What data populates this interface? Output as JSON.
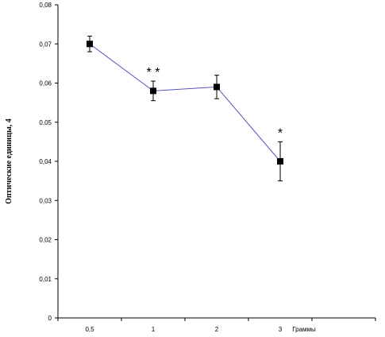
{
  "chart_data": {
    "type": "line",
    "title": "",
    "xlabel": "Граммы",
    "ylabel": "Оптические единицы, 4",
    "x": [
      "0,5",
      "1",
      "2",
      "3"
    ],
    "series": [
      {
        "values": [
          0.07,
          0.058,
          0.059,
          0.04
        ],
        "error": [
          0.002,
          0.0025,
          0.003,
          0.005
        ]
      }
    ],
    "y_ticks": [
      "0",
      "0,01",
      "0,02",
      "0,03",
      "0,04",
      "0,05",
      "0,06",
      "0,07",
      "0,08"
    ],
    "ylim": [
      0,
      0.08
    ],
    "annotations": [
      {
        "x_index": 1,
        "text": "* *"
      },
      {
        "x_index": 3,
        "text": "*"
      }
    ],
    "grid": false,
    "line_color": "#5555bb",
    "marker_color": "#000000"
  }
}
